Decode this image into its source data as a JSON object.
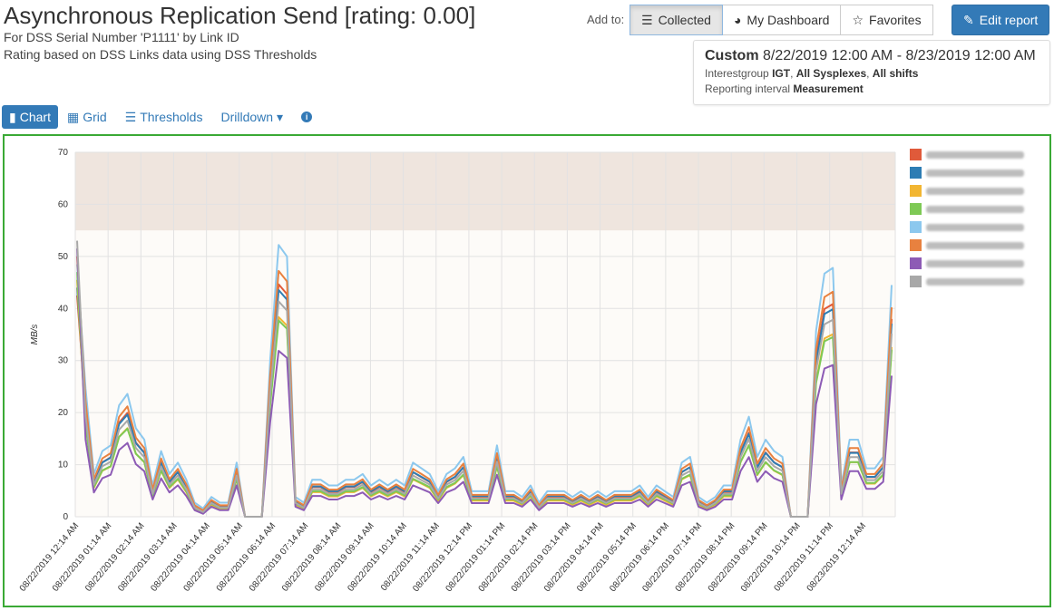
{
  "header": {
    "title": "Asynchronous Replication Send [rating: 0.00]",
    "subtitle1": "For DSS Serial Number 'P1111'  by Link ID",
    "subtitle2": "Rating based on DSS Links data using DSS Thresholds"
  },
  "toolbar": {
    "add_to_label": "Add to:",
    "collected_label": "Collected",
    "dashboard_label": "My Dashboard",
    "favorites_label": "Favorites",
    "edit_report_label": "Edit report"
  },
  "info_box": {
    "range_label": "Custom",
    "range_value": "8/22/2019 12:00 AM - 8/23/2019 12:00 AM",
    "interest_prefix": "Interestgroup",
    "interest_group": "IGT",
    "sysplexes": "All Sysplexes",
    "shifts": "All shifts",
    "interval_prefix": "Reporting interval",
    "interval_value": "Measurement"
  },
  "view_tabs": {
    "chart": "Chart",
    "grid": "Grid",
    "thresholds": "Thresholds",
    "drilldown": "Drilldown"
  },
  "colors": {
    "frame": "#3aa935",
    "primary": "#337ab7",
    "threshold_band": "#efe5de"
  },
  "chart_data": {
    "type": "line",
    "ylabel": "MB/s",
    "ylim": [
      0,
      70
    ],
    "yticks": [
      0,
      10,
      20,
      30,
      40,
      50,
      60,
      70
    ],
    "threshold_band": [
      55,
      70
    ],
    "grid": true,
    "legend_position": "right",
    "xtick_labels": [
      "08/22/2019 12:14 AM",
      "08/22/2019 01:14 AM",
      "08/22/2019 02:14 AM",
      "08/22/2019 03:14 AM",
      "08/22/2019 04:14 AM",
      "08/22/2019 05:14 AM",
      "08/22/2019 06:14 AM",
      "08/22/2019 07:14 AM",
      "08/22/2019 08:14 AM",
      "08/22/2019 09:14 AM",
      "08/22/2019 10:14 AM",
      "08/22/2019 11:14 AM",
      "08/22/2019 12:14 PM",
      "08/22/2019 01:14 PM",
      "08/22/2019 02:14 PM",
      "08/22/2019 03:14 PM",
      "08/22/2019 04:14 PM",
      "08/22/2019 05:14 PM",
      "08/22/2019 06:14 PM",
      "08/22/2019 07:14 PM",
      "08/22/2019 08:14 PM",
      "08/22/2019 09:14 PM",
      "08/22/2019 10:14 PM",
      "08/22/2019 11:14 PM",
      "08/23/2019 12:14 AM"
    ],
    "series": [
      {
        "color": "#e05a3a",
        "scale": 0.95,
        "offset": 0.0
      },
      {
        "color": "#2d7db4",
        "scale": 0.92,
        "offset": 0.3
      },
      {
        "color": "#f2b632",
        "scale": 0.82,
        "offset": -0.2
      },
      {
        "color": "#7ec955",
        "scale": 0.8,
        "offset": 0.1
      },
      {
        "color": "#8cc8ee",
        "scale": 1.1,
        "offset": 0.5
      },
      {
        "color": "#e8813f",
        "scale": 1.0,
        "offset": 0.2
      },
      {
        "color": "#8d5bb5",
        "scale": 0.68,
        "offset": -0.1
      },
      {
        "color": "#a8a8a8",
        "scale": 0.88,
        "offset": 0.0
      }
    ],
    "base_profile": [
      47,
      22,
      7,
      11,
      12,
      19,
      21,
      15,
      13,
      5,
      11,
      7,
      9,
      6,
      2,
      1,
      3,
      2,
      2,
      9,
      0,
      0,
      0,
      27,
      47,
      45,
      3,
      2,
      6,
      6,
      5,
      5,
      6,
      6,
      7,
      5,
      6,
      5,
      6,
      5,
      9,
      8,
      7,
      4,
      7,
      8,
      10,
      4,
      4,
      4,
      12,
      4,
      4,
      3,
      5,
      2,
      4,
      4,
      4,
      3,
      4,
      3,
      4,
      3,
      4,
      4,
      4,
      5,
      3,
      5,
      4,
      3,
      9,
      10,
      3,
      2,
      3,
      5,
      5,
      13,
      17,
      10,
      13,
      11,
      10,
      0,
      0,
      0,
      32,
      42,
      43,
      5,
      13,
      13,
      8,
      8,
      10,
      40
    ]
  }
}
